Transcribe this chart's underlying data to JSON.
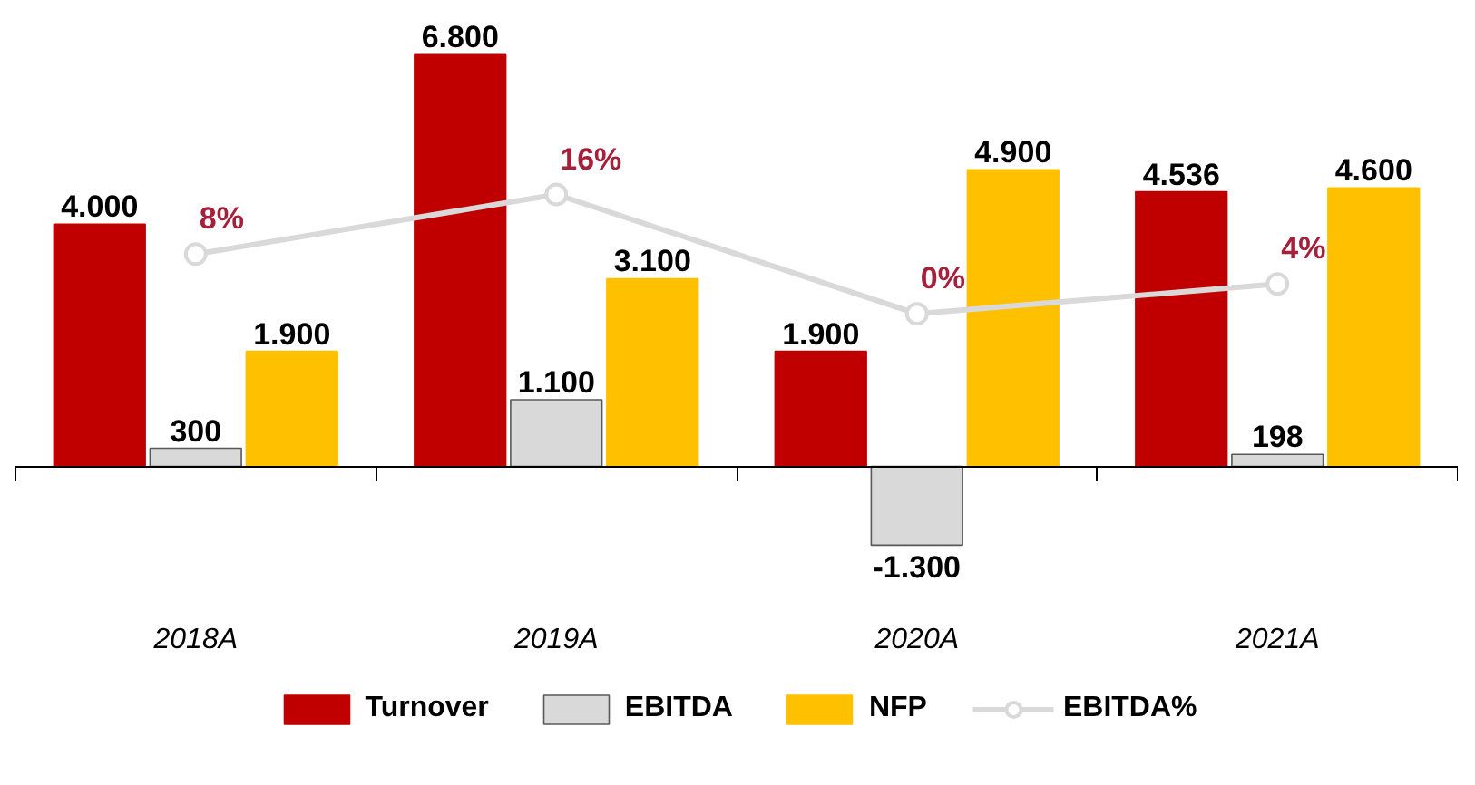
{
  "chart_data": {
    "type": "bar",
    "categories": [
      "2018A",
      "2019A",
      "2020A",
      "2021A"
    ],
    "series": [
      {
        "name": "Turnover",
        "color": "#c00000",
        "values": [
          4000,
          6800,
          1900,
          4536
        ],
        "value_labels": [
          "4.000",
          "6.800",
          "1.900",
          "4.536"
        ]
      },
      {
        "name": "EBITDA",
        "color": "#d9d9d9",
        "values": [
          300,
          1100,
          -1300,
          198
        ],
        "value_labels": [
          "300",
          "1.100",
          "-1.300",
          "198"
        ]
      },
      {
        "name": "NFP",
        "color": "#ffc000",
        "values": [
          1900,
          3100,
          4900,
          4600
        ],
        "value_labels": [
          "1.900",
          "3.100",
          "4.900",
          "4.600"
        ]
      },
      {
        "name": "EBITDA%",
        "type": "line",
        "axis": "y2",
        "color": "#d9d9d9",
        "marker": "circle",
        "values": [
          8,
          16,
          0,
          4
        ],
        "value_labels": [
          "8%",
          "16%",
          "0%",
          "4%"
        ]
      }
    ],
    "legend": "bottom"
  }
}
